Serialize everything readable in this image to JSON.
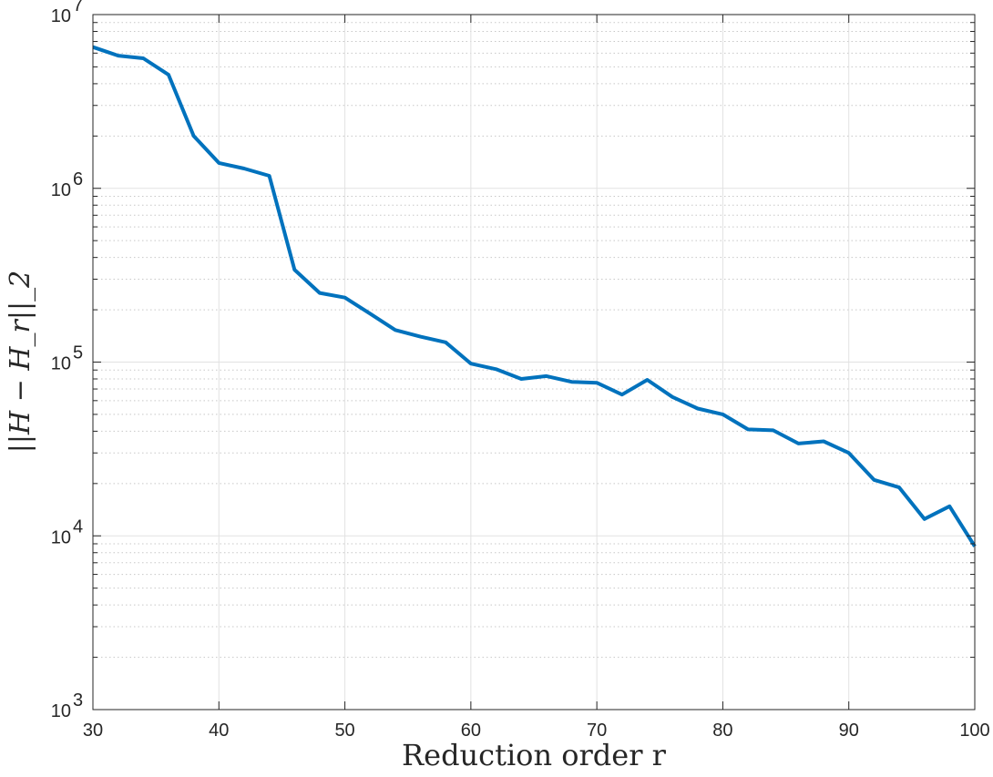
{
  "chart_data": {
    "type": "line",
    "title": "",
    "xlabel": "Reduction order r",
    "ylabel": "||H − H_r||_2",
    "xlim": [
      30,
      100
    ],
    "ylim": [
      1000,
      10000000
    ],
    "yscale": "log",
    "grid": true,
    "minor_grid": true,
    "line_color": "#0072BD",
    "x_ticks": [
      30,
      40,
      50,
      60,
      70,
      80,
      90,
      100
    ],
    "y_ticks": [
      {
        "value": 1000,
        "base": "10",
        "exp": "3"
      },
      {
        "value": 10000,
        "base": "10",
        "exp": "4"
      },
      {
        "value": 100000,
        "base": "10",
        "exp": "5"
      },
      {
        "value": 1000000,
        "base": "10",
        "exp": "6"
      },
      {
        "value": 10000000,
        "base": "10",
        "exp": "7"
      }
    ],
    "series": [
      {
        "x": [
          30,
          32,
          34,
          36,
          38,
          40,
          42,
          44,
          46,
          48,
          50,
          52,
          54,
          56,
          58,
          60,
          62,
          64,
          66,
          68,
          70,
          72,
          74,
          76,
          78,
          80,
          82,
          84,
          86,
          88,
          90,
          92,
          94,
          96,
          98,
          100
        ],
        "y": [
          6500000,
          5800000,
          5600000,
          4500000,
          2000000,
          1400000,
          1300000,
          1180000,
          340000,
          250000,
          235000,
          190000,
          153000,
          140000,
          130000,
          98000,
          91000,
          80000,
          83000,
          77000,
          76000,
          65000,
          79000,
          63000,
          54000,
          50000,
          41000,
          40500,
          34000,
          35000,
          30000,
          21000,
          19000,
          12500,
          14800,
          8700
        ]
      }
    ]
  }
}
